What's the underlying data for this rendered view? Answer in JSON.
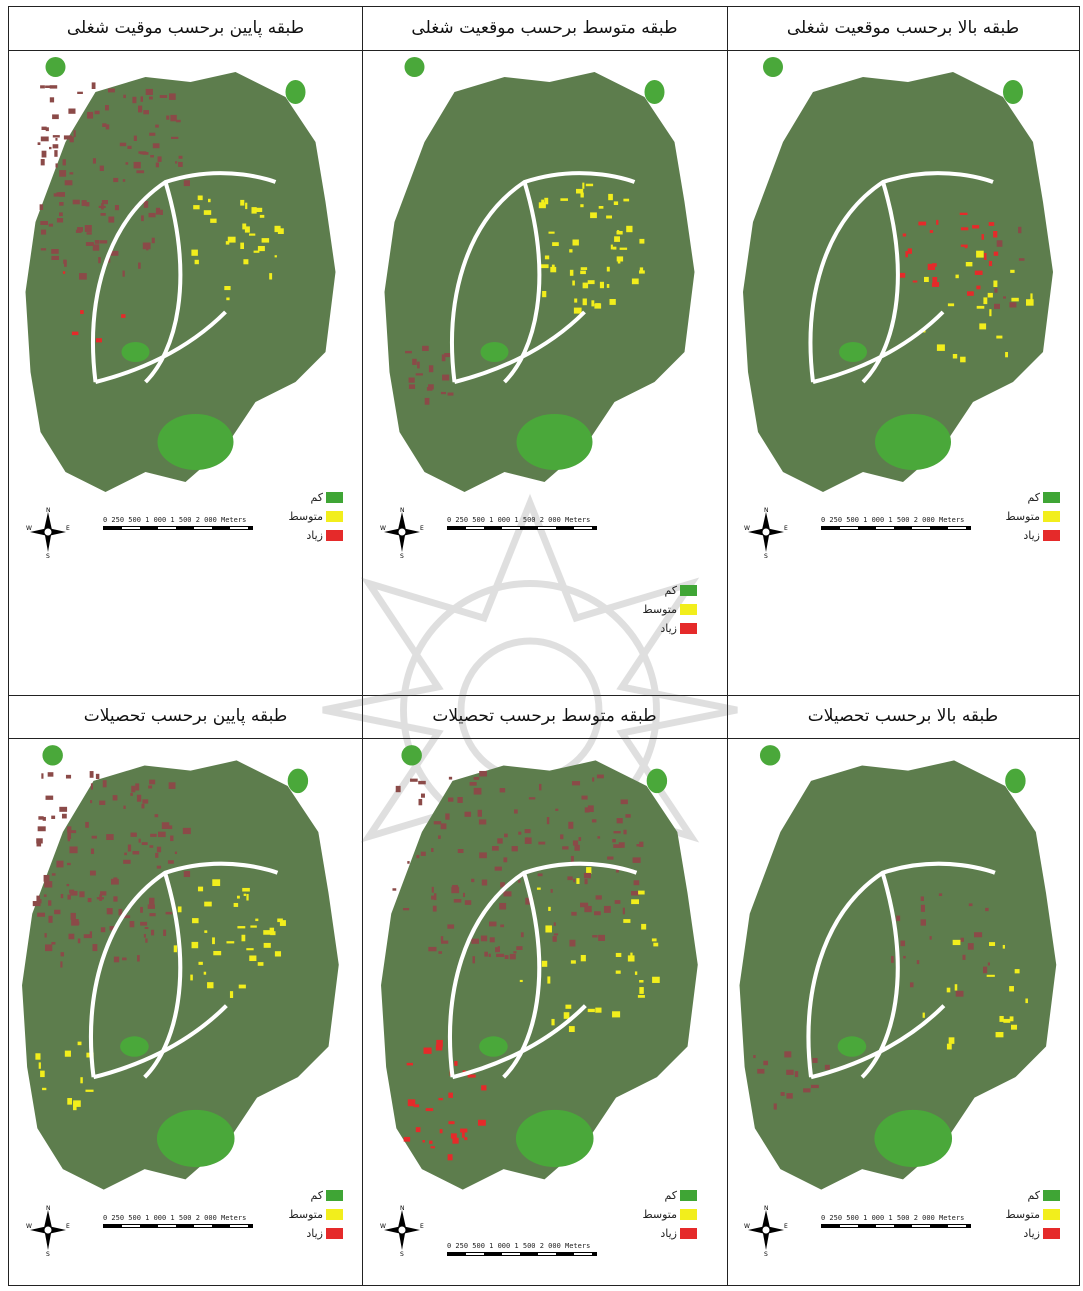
{
  "panels": [
    {
      "id": "low-job",
      "title": "طبقه پایین برحسب موقیت شغلی",
      "legend": [
        "کم",
        "متوسط",
        "زیاد"
      ]
    },
    {
      "id": "mid-job",
      "title": "طبقه متوسط برحسب موقعیت شغلی",
      "legend": [
        "کم",
        "متوسط",
        "زیاد"
      ]
    },
    {
      "id": "high-job",
      "title": "طبقه بالا برحسب موقعیت شغلی",
      "legend": [
        "کم",
        "متوسط",
        "زیاد"
      ]
    },
    {
      "id": "low-edu",
      "title": "طبقه پایین برحسب تحصیلات",
      "legend": [
        "کم",
        "متوسط",
        "زیاد"
      ]
    },
    {
      "id": "mid-edu",
      "title": "طبقه متوسط برحسب تحصیلات",
      "legend": [
        "کم",
        "متوسط",
        "زیاد"
      ]
    },
    {
      "id": "high-edu",
      "title": "طبقه بالا برحسب تحصیلات",
      "legend": [
        "کم",
        "متوسط",
        "زیاد"
      ]
    }
  ],
  "scale_labels": "0 250 500   1 000   1 500   2 000",
  "scale_unit": "Meters",
  "compass": {
    "n": "N",
    "s": "S",
    "e": "E",
    "w": "W"
  },
  "colors": {
    "low": "#3fa535",
    "mid": "#f2ee1c",
    "high": "#e52a2a",
    "base": "#5d7d4d",
    "brown": "#8b4a48",
    "green": "#4aa83a",
    "road": "#ffffff"
  },
  "icons": {
    "compass": "north-arrow-icon",
    "watermark": "university-emblem-icon"
  }
}
